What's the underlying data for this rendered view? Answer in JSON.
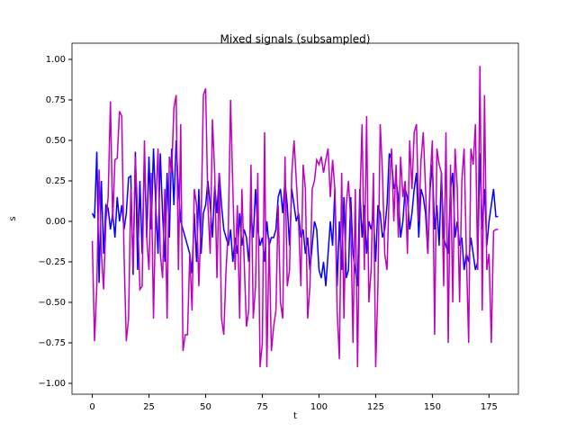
{
  "chart_data": {
    "type": "line",
    "title": "Mixed signals (subsampled)",
    "x_label": "t",
    "y_label": "s",
    "x": [
      0,
      1,
      2,
      3,
      4,
      5,
      6,
      7,
      8,
      9,
      10,
      11,
      12,
      13,
      14,
      15,
      16,
      17,
      18,
      19,
      20,
      21,
      22,
      23,
      24,
      25,
      26,
      27,
      28,
      29,
      30,
      31,
      32,
      33,
      34,
      35,
      36,
      37,
      38,
      39,
      40,
      41,
      42,
      43,
      44,
      45,
      46,
      47,
      48,
      49,
      50,
      51,
      52,
      53,
      54,
      55,
      56,
      57,
      58,
      59,
      60,
      61,
      62,
      63,
      64,
      65,
      66,
      67,
      68,
      69,
      70,
      71,
      72,
      73,
      74,
      75,
      76,
      77,
      78,
      79,
      80,
      81,
      82,
      83,
      84,
      85,
      86,
      87,
      88,
      89,
      90,
      91,
      92,
      93,
      94,
      95,
      96,
      97,
      98,
      99,
      100,
      101,
      102,
      103,
      104,
      105,
      106,
      107,
      108,
      109,
      110,
      111,
      112,
      113,
      114,
      115,
      116,
      117,
      118,
      119,
      120,
      121,
      122,
      123,
      124,
      125,
      126,
      127,
      128,
      129,
      130,
      131,
      132,
      133,
      134,
      135,
      136,
      137,
      138,
      139,
      140,
      141,
      142,
      143,
      144,
      145,
      146,
      147,
      148,
      149,
      150,
      151,
      152,
      153,
      154,
      155,
      156,
      157,
      158,
      159,
      160,
      161,
      162,
      163,
      164,
      165,
      166,
      167,
      168,
      169,
      170,
      171,
      172,
      173,
      174,
      175,
      176,
      177,
      178,
      179
    ],
    "series": [
      {
        "color": "#0000ff",
        "values": [
          0.05,
          0.02,
          0.43,
          -0.38,
          0.25,
          -0.2,
          0.1,
          0.08,
          -0.05,
          0.05,
          -0.1,
          0.15,
          0.0,
          0.1,
          -0.05,
          0.05,
          0.27,
          0.28,
          -0.33,
          0.43,
          -0.3,
          0.25,
          -0.2,
          0.42,
          -0.1,
          0.4,
          -0.05,
          0.45,
          0.1,
          -0.2,
          0.42,
          0.05,
          -0.25,
          0.3,
          -0.1,
          0.45,
          0.1,
          0.5,
          0.2,
          0.0,
          -0.05,
          -0.1,
          -0.15,
          -0.2,
          -0.32,
          0.05,
          -0.25,
          0.2,
          -0.2,
          0.05,
          0.1,
          0.25,
          0.1,
          -0.1,
          0.22,
          0.05,
          0.3,
          0.1,
          -0.05,
          -0.1,
          -0.15,
          -0.05,
          -0.25,
          -0.1,
          -0.2,
          0.05,
          -0.15,
          -0.05,
          -0.1,
          -0.25,
          0.05,
          -0.1,
          0.2,
          -0.05,
          -0.15,
          -0.1,
          -0.25,
          0.0,
          -0.15,
          -0.1,
          -0.1,
          -0.05,
          0.15,
          0.2,
          0.05,
          0.25,
          0.1,
          -0.15,
          0.2,
          0.1,
          0.0,
          0.05,
          -0.1,
          -0.05,
          -0.2,
          -0.1,
          -0.3,
          -0.15,
          0.0,
          -0.05,
          -0.3,
          -0.35,
          -0.25,
          -0.4,
          -0.2,
          0.0,
          -0.15,
          0.2,
          -0.4,
          0.0,
          -0.3,
          0.15,
          -0.35,
          -0.3,
          0.15,
          -0.2,
          -0.3,
          -0.4,
          0.2,
          -0.1,
          0.1,
          -0.2,
          0.0,
          -0.05,
          0.05,
          -0.25,
          0.1,
          0.05,
          -0.1,
          -0.05,
          0.1,
          0.42,
          0.38,
          0.2,
          0.25,
          0.15,
          -0.1,
          0.0,
          0.2,
          0.15,
          -0.05,
          0.05,
          0.2,
          0.3,
          -0.1,
          0.2,
          0.15,
          0.05,
          -0.2,
          0.2,
          0.35,
          -0.05,
          0.1,
          -0.15,
          0.3,
          -0.1,
          -0.15,
          -0.2,
          0.2,
          0.3,
          -0.1,
          0.0,
          -0.15,
          -0.1,
          -0.3,
          -0.2,
          -0.25,
          -0.1,
          -0.2,
          -0.3,
          -0.25,
          0.42,
          -0.05,
          0.2,
          -0.15,
          0.0,
          0.1,
          0.2,
          0.03,
          0.03
        ]
      },
      {
        "color": "#bf00bf",
        "values": [
          -0.12,
          -0.74,
          -0.4,
          0.32,
          -0.2,
          -0.42,
          0.0,
          0.15,
          0.74,
          0.0,
          0.38,
          0.39,
          0.68,
          0.65,
          -0.2,
          -0.74,
          -0.6,
          0.2,
          -0.3,
          0.4,
          0.05,
          -0.42,
          -0.4,
          0.5,
          -0.1,
          -0.3,
          0.3,
          -0.6,
          0.1,
          0.45,
          -0.2,
          -0.35,
          0.2,
          -0.6,
          0.4,
          0.3,
          0.7,
          0.78,
          -0.3,
          0.6,
          -0.8,
          -0.7,
          -0.7,
          -0.2,
          -0.55,
          0.2,
          0.1,
          -0.4,
          0.0,
          0.78,
          0.82,
          0.1,
          -0.2,
          0.63,
          0.3,
          -0.35,
          0.3,
          -0.6,
          -0.7,
          -0.3,
          -0.05,
          0.75,
          0.2,
          -0.3,
          0.1,
          -0.6,
          0.2,
          -0.25,
          -0.65,
          -0.55,
          0.35,
          -0.6,
          -0.4,
          0.3,
          -0.9,
          -0.75,
          0.55,
          -0.9,
          -0.1,
          -0.8,
          -0.65,
          -0.55,
          0.1,
          -0.5,
          -0.6,
          0.4,
          -0.4,
          -0.3,
          0.3,
          0.5,
          0.25,
          0.0,
          -0.4,
          0.35,
          0.2,
          -0.6,
          -0.4,
          0.2,
          0.25,
          0.38,
          0.35,
          0.4,
          0.3,
          0.38,
          0.45,
          0.15,
          0.38,
          0.2,
          -0.55,
          -0.85,
          0.3,
          -0.6,
          0.1,
          0.25,
          0.0,
          -0.75,
          0.2,
          -0.9,
          0.1,
          0.6,
          -0.3,
          0.65,
          -0.5,
          -0.3,
          0.3,
          -0.9,
          -0.4,
          0.6,
          0.3,
          -0.2,
          -0.3,
          0.2,
          0.45,
          0.0,
          0.35,
          -0.1,
          0.4,
          0.15,
          0.25,
          -0.2,
          0.5,
          0.2,
          0.55,
          0.6,
          0.0,
          0.38,
          0.55,
          0.2,
          -0.2,
          0.25,
          0.5,
          -0.7,
          0.45,
          0.35,
          0.3,
          -0.4,
          0.55,
          -0.75,
          0.35,
          -0.5,
          0.45,
          0.2,
          -0.5,
          0.25,
          0.45,
          -0.2,
          -0.75,
          0.45,
          0.35,
          0.6,
          -0.3,
          0.96,
          -0.55,
          0.78,
          -0.3,
          -0.2,
          -0.75,
          -0.06,
          -0.05,
          -0.05
        ]
      }
    ],
    "xlim": [
      -8.95,
      187.95
    ],
    "xticks": [
      0,
      25,
      50,
      75,
      100,
      125,
      150,
      175
    ],
    "ylim": [
      -1.067,
      1.1
    ],
    "yticks": [
      {
        "value": -1,
        "label": "−1.00"
      },
      {
        "value": -0.75,
        "label": "−0.75"
      },
      {
        "value": -0.5,
        "label": "−0.50"
      },
      {
        "value": -0.25,
        "label": "−0.25"
      },
      {
        "value": 0,
        "label": "0.00"
      },
      {
        "value": 0.25,
        "label": "0.25"
      },
      {
        "value": 0.5,
        "label": "0.50"
      },
      {
        "value": 0.75,
        "label": "0.75"
      },
      {
        "value": 1,
        "label": "1.00"
      }
    ]
  }
}
